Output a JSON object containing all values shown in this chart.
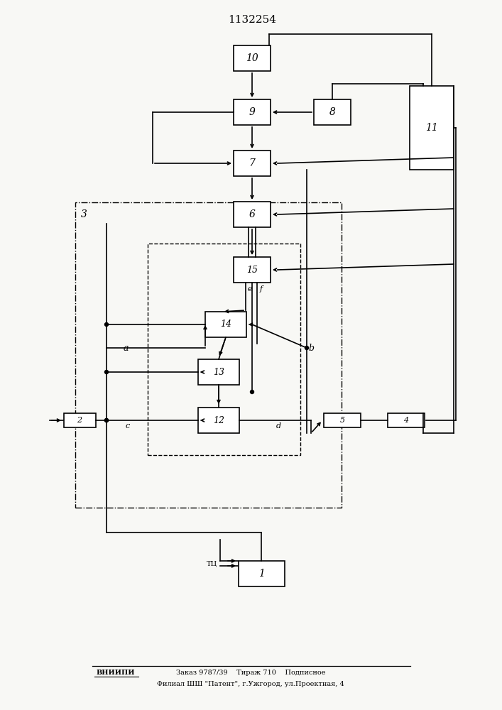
{
  "title": "1132254",
  "footer_line1": "ВНИИПИ    Заказ 9787/39    Тираж 710    Подписное",
  "footer_line2": "Филиал ШШ \"Патент\", г.Ужгород, ул.Проектная, 4",
  "bg_color": "#f8f8f5"
}
